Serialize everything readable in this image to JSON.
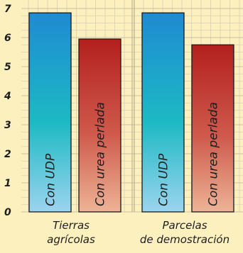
{
  "chart_data": {
    "type": "bar",
    "categories": [
      "Tierras agrícolas",
      "Parcelas de demostración"
    ],
    "category_lines": [
      [
        "Tierras",
        "agrícolas"
      ],
      [
        "Parcelas",
        "de demostración"
      ]
    ],
    "series": [
      {
        "name": "Con UDP",
        "values": [
          6.85,
          6.85
        ],
        "color_top": "#1e8bd2",
        "color_mid": "#1db9c4",
        "color_bottom": "#9cd4ee"
      },
      {
        "name": "Con urea perlada",
        "values": [
          5.95,
          5.75
        ],
        "color_top": "#b3201e",
        "color_mid": "#cf5a4c",
        "color_bottom": "#ecb496"
      }
    ],
    "yticks": [
      "0",
      "1",
      "2",
      "3",
      "4",
      "5",
      "6",
      "7"
    ],
    "ylim": [
      0,
      7
    ],
    "grid": true,
    "background": "#fdf0bf",
    "grid_color": "#d7cfb6"
  }
}
